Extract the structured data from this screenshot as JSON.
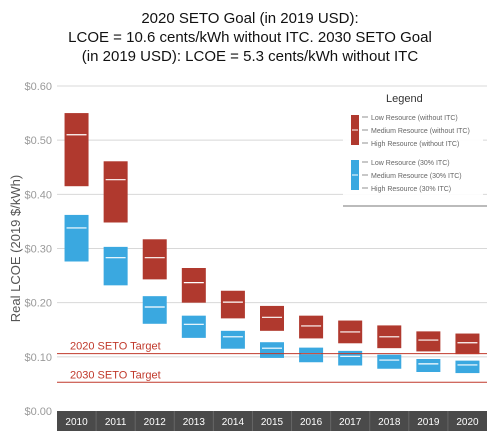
{
  "title_lines": [
    "2020 SETO Goal (in 2019 USD):",
    "LCOE = 10.6 cents/kWh without ITC. 2030 SETO Goal",
    "(in 2019 USD): LCOE = 5.3 cents/kWh without ITC"
  ],
  "colors": {
    "without_itc": "#b0392e",
    "with_itc": "#3aa8e0",
    "target_line": "#c0392b",
    "axis_strip": "#4a4a4a",
    "grid": "#d8d8d8",
    "axis_text": "#9a9a9a",
    "marker": "#ffffff"
  },
  "chart_data": {
    "type": "bar",
    "subtype": "floating-range",
    "ylabel": "Real LCOE (2019 $/kWh)",
    "ylim": [
      0,
      0.6
    ],
    "yticks": [
      "$0.00",
      "$0.10",
      "$0.20",
      "$0.30",
      "$0.40",
      "$0.50",
      "$0.60"
    ],
    "ytick_values": [
      0,
      0.1,
      0.2,
      0.3,
      0.4,
      0.5,
      0.6
    ],
    "categories": [
      "2010",
      "2011",
      "2012",
      "2013",
      "2014",
      "2015",
      "2016",
      "2017",
      "2018",
      "2019",
      "2020"
    ],
    "series": [
      {
        "name": "without ITC",
        "low": [
          0.415,
          0.348,
          0.243,
          0.2,
          0.171,
          0.148,
          0.134,
          0.125,
          0.116,
          0.11,
          0.105
        ],
        "medium": [
          0.51,
          0.427,
          0.283,
          0.237,
          0.201,
          0.173,
          0.157,
          0.146,
          0.137,
          0.131,
          0.126
        ],
        "high": [
          0.55,
          0.461,
          0.317,
          0.264,
          0.222,
          0.194,
          0.176,
          0.167,
          0.158,
          0.147,
          0.143
        ]
      },
      {
        "name": "30% ITC",
        "low": [
          0.276,
          0.232,
          0.161,
          0.135,
          0.115,
          0.098,
          0.09,
          0.084,
          0.078,
          0.072,
          0.07
        ],
        "medium": [
          0.338,
          0.283,
          0.192,
          0.16,
          0.137,
          0.116,
          0.106,
          0.101,
          0.094,
          0.087,
          0.085
        ],
        "high": [
          0.362,
          0.303,
          0.212,
          0.176,
          0.148,
          0.127,
          0.117,
          0.111,
          0.104,
          0.096,
          0.093
        ]
      }
    ],
    "targets": [
      {
        "label": "2020 SETO Target",
        "value": 0.106
      },
      {
        "label": "2030 SETO Target",
        "value": 0.053
      }
    ],
    "legend": {
      "title": "Legend",
      "position": "top-right",
      "groups": [
        {
          "series": "without ITC",
          "entries": [
            "Low Resource (without ITC)",
            "Medium Resource (without ITC)",
            "High Resource (without ITC)"
          ]
        },
        {
          "series": "30% ITC",
          "entries": [
            "Low Resource (30% ITC)",
            "Medium Resource (30% ITC)",
            "High Resource (30% ITC)"
          ]
        }
      ]
    }
  }
}
